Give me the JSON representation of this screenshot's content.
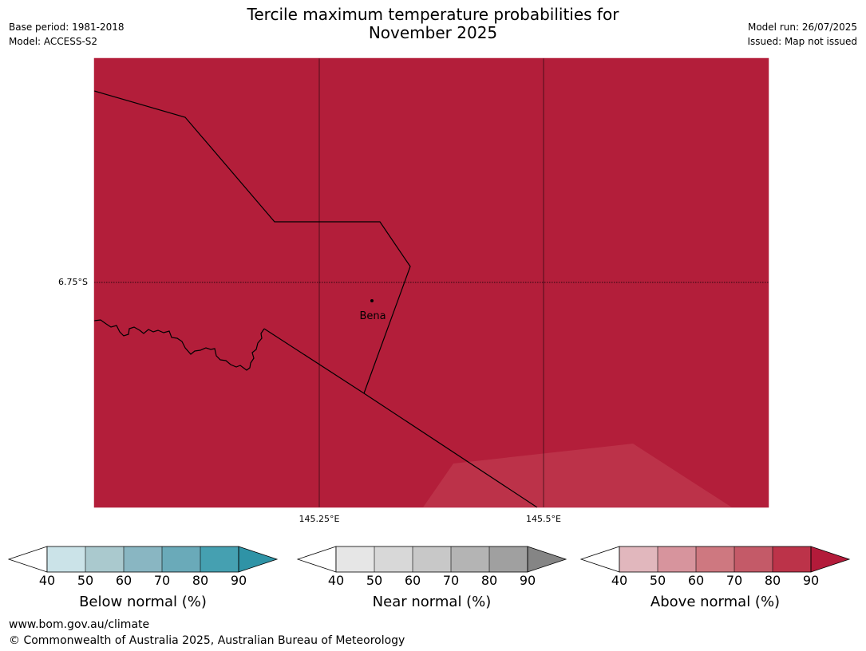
{
  "title_line1": "Tercile maximum temperature probabilities for",
  "title_line2": "November 2025",
  "meta_left": {
    "base_period": "Base period: 1981-2018",
    "model": "Model: ACCESS-S2"
  },
  "meta_right": {
    "model_run": "Model run: 26/07/2025",
    "issued": "Issued: Map not issued"
  },
  "map": {
    "lat_label": "6.75°S",
    "lon_labels": [
      "145.25°E",
      "145.5°E"
    ],
    "place_label": "Bena",
    "fill_color": "#b31e3a",
    "lighter_zone_color": "#bc3249"
  },
  "colorbars": [
    {
      "label": "Below normal (%)",
      "ticks": [
        "40",
        "50",
        "60",
        "70",
        "80",
        "90"
      ],
      "colors": [
        "#cbe3e8",
        "#aac9ce",
        "#89b6c2",
        "#6aaab9",
        "#45a0b1"
      ],
      "arrow_color": "#2f93a6"
    },
    {
      "label": "Near normal (%)",
      "ticks": [
        "40",
        "50",
        "60",
        "70",
        "80",
        "90"
      ],
      "colors": [
        "#e6e6e6",
        "#d8d8d8",
        "#c8c8c8",
        "#b4b4b4",
        "#a0a0a0"
      ],
      "arrow_color": "#858585"
    },
    {
      "label": "Above normal (%)",
      "ticks": [
        "40",
        "50",
        "60",
        "70",
        "80",
        "90"
      ],
      "colors": [
        "#e1b7bd",
        "#d7949d",
        "#ce7880",
        "#c45a68",
        "#bc3349"
      ],
      "arrow_color": "#b31b3a"
    }
  ],
  "footer": {
    "url": "www.bom.gov.au/climate",
    "copyright": "© Commonwealth of Australia 2025, Australian Bureau of Meteorology"
  }
}
